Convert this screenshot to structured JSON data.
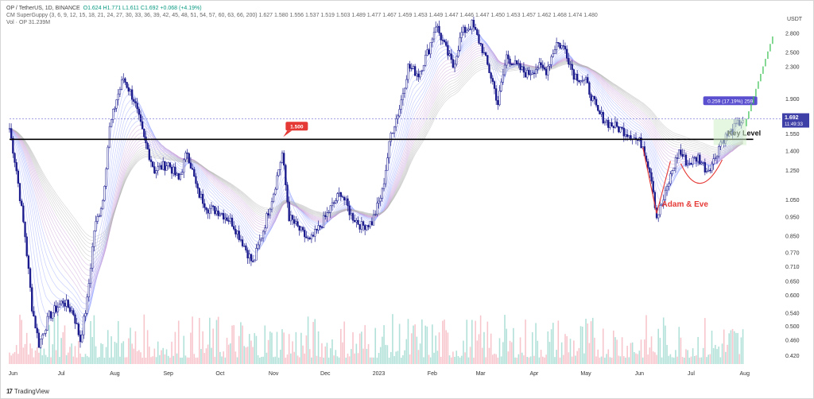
{
  "legend": {
    "symbol": "OP / TetherUS, 1D, BINANCE",
    "ohlc": "O1.624  H1.771  L1.611  C1.692  +0.068 (+4.19%)",
    "guppy": "CM SuperGuppy (3, 6, 9, 12, 15, 18, 21, 24, 27, 30, 33, 36, 39, 42, 45, 48, 51, 54, 57, 60, 63, 66, 200)   1.627  1.580  1.556  1.537  1.519  1.503  1.489  1.477  1.467  1.459  1.453  1.449  1.447  1.446  1.447  1.450  1.453  1.457  1.462  1.468  1.474  1.480",
    "vol": "Vol · OP   31.239M"
  },
  "brand": {
    "name": "TradingView"
  },
  "colors": {
    "up": "#089981",
    "down": "#f23645",
    "candle": "#1a1a8c",
    "keyline": "#000000",
    "annot_red": "#e53935",
    "price_tag": "#3f3fa8",
    "measure": "#5a4fcf"
  },
  "chart_data": {
    "type": "candlestick",
    "symbol": "OP / TetherUS",
    "timeframe": "1D",
    "exchange": "BINANCE",
    "currency": "USDT",
    "y_scale": "log",
    "ylim": [
      0.4,
      3.1
    ],
    "y_ticks": [
      "2.800",
      "2.500",
      "2.300",
      "1.900",
      "1.550",
      "1.400",
      "1.250",
      "1.050",
      "0.950",
      "0.850",
      "0.770",
      "0.710",
      "0.650",
      "0.600",
      "0.540",
      "0.500",
      "0.460",
      "0.420"
    ],
    "x_ticks": [
      "Jun",
      "Jul",
      "Aug",
      "Sep",
      "Oct",
      "Nov",
      "Dec",
      "2023",
      "Feb",
      "Mar",
      "Apr",
      "May",
      "Jun",
      "Jul",
      "Aug"
    ],
    "x_range": [
      "2022-06-01",
      "2023-08-20"
    ],
    "price_path": [
      {
        "date": "2022-06-01",
        "value": 1.6
      },
      {
        "date": "2022-06-05",
        "value": 1.25
      },
      {
        "date": "2022-06-10",
        "value": 0.85
      },
      {
        "date": "2022-06-14",
        "value": 0.56
      },
      {
        "date": "2022-06-18",
        "value": 0.45
      },
      {
        "date": "2022-06-24",
        "value": 0.53
      },
      {
        "date": "2022-07-02",
        "value": 0.58
      },
      {
        "date": "2022-07-08",
        "value": 0.54
      },
      {
        "date": "2022-07-12",
        "value": 0.46
      },
      {
        "date": "2022-07-16",
        "value": 0.58
      },
      {
        "date": "2022-07-20",
        "value": 0.88
      },
      {
        "date": "2022-07-25",
        "value": 1.05
      },
      {
        "date": "2022-07-29",
        "value": 1.6
      },
      {
        "date": "2022-08-02",
        "value": 1.9
      },
      {
        "date": "2022-08-06",
        "value": 2.15
      },
      {
        "date": "2022-08-12",
        "value": 1.9
      },
      {
        "date": "2022-08-18",
        "value": 1.5
      },
      {
        "date": "2022-08-24",
        "value": 1.25
      },
      {
        "date": "2022-09-01",
        "value": 1.3
      },
      {
        "date": "2022-09-07",
        "value": 1.18
      },
      {
        "date": "2022-09-12",
        "value": 1.4
      },
      {
        "date": "2022-09-18",
        "value": 1.1
      },
      {
        "date": "2022-09-24",
        "value": 1.0
      },
      {
        "date": "2022-10-01",
        "value": 0.98
      },
      {
        "date": "2022-10-08",
        "value": 0.92
      },
      {
        "date": "2022-10-14",
        "value": 0.82
      },
      {
        "date": "2022-10-20",
        "value": 0.72
      },
      {
        "date": "2022-10-26",
        "value": 0.88
      },
      {
        "date": "2022-11-01",
        "value": 1.1
      },
      {
        "date": "2022-11-06",
        "value": 1.38
      },
      {
        "date": "2022-11-10",
        "value": 0.95
      },
      {
        "date": "2022-11-16",
        "value": 0.88
      },
      {
        "date": "2022-11-22",
        "value": 0.82
      },
      {
        "date": "2022-11-28",
        "value": 0.9
      },
      {
        "date": "2022-12-04",
        "value": 1.0
      },
      {
        "date": "2022-12-10",
        "value": 1.1
      },
      {
        "date": "2022-12-16",
        "value": 0.96
      },
      {
        "date": "2022-12-22",
        "value": 0.9
      },
      {
        "date": "2022-12-28",
        "value": 0.92
      },
      {
        "date": "2023-01-03",
        "value": 1.1
      },
      {
        "date": "2023-01-08",
        "value": 1.55
      },
      {
        "date": "2023-01-13",
        "value": 1.8
      },
      {
        "date": "2023-01-18",
        "value": 2.3
      },
      {
        "date": "2023-01-24",
        "value": 2.2
      },
      {
        "date": "2023-01-30",
        "value": 2.55
      },
      {
        "date": "2023-02-03",
        "value": 2.95
      },
      {
        "date": "2023-02-08",
        "value": 2.6
      },
      {
        "date": "2023-02-13",
        "value": 2.3
      },
      {
        "date": "2023-02-18",
        "value": 2.8
      },
      {
        "date": "2023-02-24",
        "value": 2.95
      },
      {
        "date": "2023-03-02",
        "value": 2.55
      },
      {
        "date": "2023-03-08",
        "value": 2.1
      },
      {
        "date": "2023-03-11",
        "value": 1.85
      },
      {
        "date": "2023-03-16",
        "value": 2.45
      },
      {
        "date": "2023-03-22",
        "value": 2.3
      },
      {
        "date": "2023-03-28",
        "value": 2.2
      },
      {
        "date": "2023-04-03",
        "value": 2.3
      },
      {
        "date": "2023-04-08",
        "value": 2.25
      },
      {
        "date": "2023-04-14",
        "value": 2.65
      },
      {
        "date": "2023-04-19",
        "value": 2.55
      },
      {
        "date": "2023-04-24",
        "value": 2.2
      },
      {
        "date": "2023-05-01",
        "value": 2.1
      },
      {
        "date": "2023-05-08",
        "value": 1.75
      },
      {
        "date": "2023-05-14",
        "value": 1.65
      },
      {
        "date": "2023-05-20",
        "value": 1.6
      },
      {
        "date": "2023-05-26",
        "value": 1.55
      },
      {
        "date": "2023-06-03",
        "value": 1.45
      },
      {
        "date": "2023-06-08",
        "value": 1.2
      },
      {
        "date": "2023-06-11",
        "value": 0.95
      },
      {
        "date": "2023-06-15",
        "value": 1.05
      },
      {
        "date": "2023-06-20",
        "value": 1.25
      },
      {
        "date": "2023-06-24",
        "value": 1.4
      },
      {
        "date": "2023-06-29",
        "value": 1.3
      },
      {
        "date": "2023-07-05",
        "value": 1.35
      },
      {
        "date": "2023-07-10",
        "value": 1.25
      },
      {
        "date": "2023-07-14",
        "value": 1.32
      },
      {
        "date": "2023-07-18",
        "value": 1.48
      },
      {
        "date": "2023-07-23",
        "value": 1.55
      },
      {
        "date": "2023-07-27",
        "value": 1.62
      },
      {
        "date": "2023-07-31",
        "value": 1.69
      }
    ],
    "key_level": {
      "value": 1.5,
      "label": "1.500"
    },
    "current_price": {
      "value": "1.692",
      "countdown": "11:49:33"
    },
    "measure": {
      "label": "0.259 (17.19%) 259"
    },
    "annotations": [
      {
        "text": "Key Level"
      },
      {
        "text": "Adam & Eve"
      }
    ]
  }
}
